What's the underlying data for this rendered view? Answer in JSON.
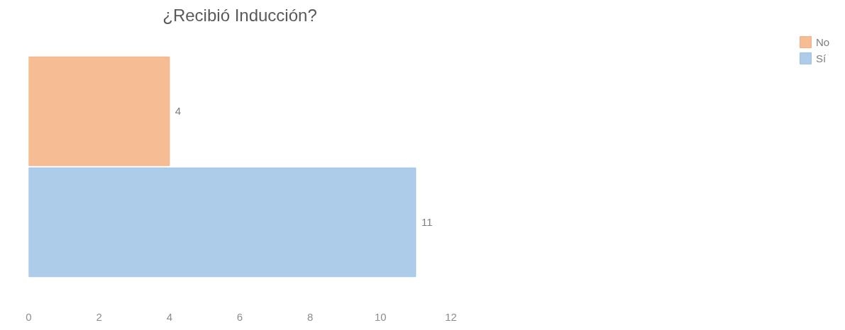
{
  "chart_data": {
    "type": "bar",
    "orientation": "horizontal",
    "title": "¿Recibió Inducción?",
    "categories": [
      null
    ],
    "series": [
      {
        "name": "No",
        "color": "#f4b183",
        "values": [
          4
        ]
      },
      {
        "name": "Sí",
        "color": "#9dc3e6",
        "values": [
          11
        ]
      }
    ],
    "xlim": [
      0,
      12
    ],
    "xticks": [
      0,
      2,
      4,
      6,
      8,
      10,
      12
    ],
    "grid": false,
    "legend": "right",
    "data_labels": true,
    "tick_labels": "x"
  }
}
